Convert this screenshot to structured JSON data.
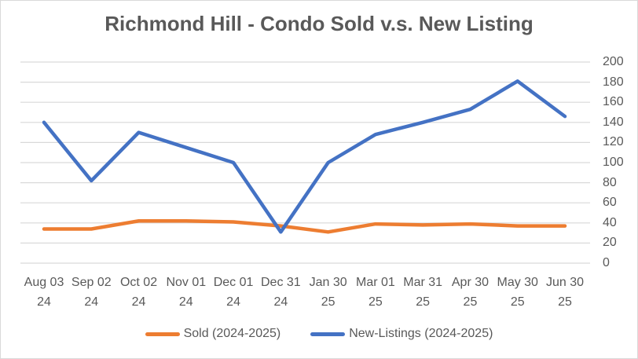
{
  "chart_data": {
    "type": "line",
    "title": "Richmond Hill - Condo Sold v.s. New Listing",
    "categories": [
      "Aug 03 24",
      "Sep 02 24",
      "Oct 02 24",
      "Nov 01 24",
      "Dec 01 24",
      "Dec 31 24",
      "Jan 30 25",
      "Mar 01 25",
      "Mar 31 25",
      "Apr 30 25",
      "May 30 25",
      "Jun 30 25"
    ],
    "categories_two_line": [
      [
        "Aug 03",
        "24"
      ],
      [
        "Sep 02",
        "24"
      ],
      [
        "Oct 02",
        "24"
      ],
      [
        "Nov 01",
        "24"
      ],
      [
        "Dec 01",
        "24"
      ],
      [
        "Dec 31",
        "24"
      ],
      [
        "Jan 30",
        "25"
      ],
      [
        "Mar 01",
        "25"
      ],
      [
        "Mar 31",
        "25"
      ],
      [
        "Apr 30",
        "25"
      ],
      [
        "May 30",
        "25"
      ],
      [
        "Jun 30",
        "25"
      ]
    ],
    "series": [
      {
        "name": "Sold (2024-2025)",
        "color": "#ED7D31",
        "values": [
          34,
          34,
          42,
          42,
          41,
          37,
          31,
          39,
          38,
          39,
          37,
          37
        ]
      },
      {
        "name": "New-Listings (2024-2025)",
        "color": "#4472C4",
        "values": [
          140,
          82,
          130,
          115,
          100,
          31,
          100,
          128,
          140,
          153,
          181,
          146
        ]
      }
    ],
    "xlabel": "",
    "ylabel": "",
    "ylim": [
      0,
      200
    ],
    "y_ticks": [
      0,
      20,
      40,
      60,
      80,
      100,
      120,
      140,
      160,
      180,
      200
    ],
    "y_axis_side": "right",
    "grid": "horizontal",
    "legend_position": "bottom",
    "colors": {
      "gridline": "#D9D9D9",
      "text": "#595959",
      "frame_border": "#D9D9D9",
      "background": "#FFFFFF"
    }
  }
}
